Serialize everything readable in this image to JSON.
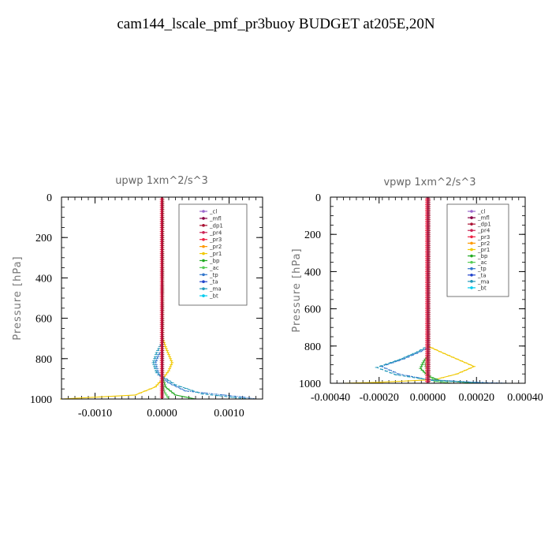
{
  "title": "cam144_lscale_pmf_pr3buoy  BUDGET at205E,20N",
  "chart_data": [
    {
      "type": "line",
      "title": "upwp   1xm^2/s^3",
      "ylabel": "Pressure [hPa]",
      "xlabel": "",
      "xlim": [
        -0.0015,
        0.0015
      ],
      "ylim": [
        1000,
        0
      ],
      "x_ticks": [
        "-0.0010",
        "0.0000",
        "0.0010"
      ],
      "x_tick_values": [
        -0.001,
        0,
        0.001
      ],
      "y_ticks": [
        "0",
        "200",
        "400",
        "600",
        "800",
        "1000"
      ],
      "y_tick_values": [
        0,
        200,
        400,
        600,
        800,
        1000
      ],
      "legend": [
        "_cl",
        "_mfl",
        "_dp1",
        "_pr4",
        "_pr3",
        "_pr2",
        "_pr1",
        "_bp",
        "_ac",
        "_tp",
        "_ta",
        "_ma",
        "_bt"
      ],
      "series": [
        {
          "name": "_pr1",
          "color": "#f0c800",
          "points": [
            [
              1e-05,
              0
            ],
            [
              1e-05,
              700
            ],
            [
              5e-05,
              740
            ],
            [
              0.0001,
              780
            ],
            [
              0.00015,
              820
            ],
            [
              0.0001,
              860
            ],
            [
              1e-05,
              900
            ],
            [
              -0.0001,
              940
            ],
            [
              -0.0004,
              980
            ],
            [
              -0.0015,
              1000
            ]
          ]
        },
        {
          "name": "_bp",
          "color": "#22aa22",
          "points": [
            [
              0,
              0
            ],
            [
              0,
              880
            ],
            [
              5e-05,
              940
            ],
            [
              0.0002,
              980
            ],
            [
              0.0005,
              1000
            ]
          ]
        },
        {
          "name": "_ac",
          "color": "#55cc55",
          "points": [
            [
              0,
              0
            ],
            [
              0,
              900
            ],
            [
              3e-05,
              960
            ],
            [
              0.0001,
              1000
            ]
          ]
        },
        {
          "name": "_tp",
          "color": "#3377cc",
          "points": [
            [
              0,
              0
            ],
            [
              0,
              760
            ],
            [
              -5e-05,
              780
            ],
            [
              -0.0001,
              820
            ],
            [
              -5e-05,
              880
            ],
            [
              0.0001,
              920
            ],
            [
              0.00035,
              960
            ],
            [
              0.0012,
              990
            ],
            [
              0.0014,
              1000
            ]
          ]
        },
        {
          "name": "_ma",
          "color": "#2299bb",
          "points": [
            [
              0,
              0
            ],
            [
              0,
              720
            ],
            [
              -8e-05,
              770
            ],
            [
              -0.00013,
              820
            ],
            [
              -8e-05,
              870
            ],
            [
              0.0002,
              930
            ],
            [
              0.0006,
              975
            ],
            [
              0.0013,
              1000
            ]
          ]
        },
        {
          "name": "_cl",
          "color": "#9966cc",
          "points": [
            [
              0,
              0
            ],
            [
              0,
              1000
            ]
          ]
        },
        {
          "name": "_mfl",
          "color": "#880044",
          "points": [
            [
              0,
              0
            ],
            [
              0,
              1000
            ]
          ]
        },
        {
          "name": "_pr3",
          "color": "#ee2244",
          "points": [
            [
              -1e-05,
              0
            ],
            [
              -1e-05,
              1000
            ]
          ]
        },
        {
          "name": "_dp1",
          "color": "#aa1133",
          "points": [
            [
              1e-05,
              0
            ],
            [
              1e-05,
              1000
            ]
          ]
        }
      ]
    },
    {
      "type": "line",
      "title": "vpwp   1xm^2/s^3",
      "ylabel": "Pressure [hPa]",
      "xlabel": "",
      "xlim": [
        -0.0004,
        0.0004
      ],
      "ylim": [
        1000,
        0
      ],
      "x_ticks": [
        "-0.00040",
        "-0.00020",
        "0.00000",
        "0.00020",
        "0.00040"
      ],
      "x_tick_values": [
        -0.0004,
        -0.0002,
        0,
        0.0002,
        0.0004
      ],
      "y_ticks": [
        "0",
        "200",
        "400",
        "600",
        "800",
        "1000"
      ],
      "y_tick_values": [
        0,
        200,
        400,
        600,
        800,
        1000
      ],
      "legend": [
        "_cl",
        "_mfl",
        "_dp1",
        "_pr4",
        "_pr3",
        "_pr2",
        "_pr1",
        "_bp",
        "_ac",
        "_tp",
        "_ta",
        "_ma",
        "_bt"
      ],
      "series": [
        {
          "name": "_pr1",
          "color": "#f0c800",
          "points": [
            [
              0,
              0
            ],
            [
              0,
              800
            ],
            [
              5e-05,
              830
            ],
            [
              0.00012,
              870
            ],
            [
              0.00019,
              910
            ],
            [
              0.00012,
              950
            ],
            [
              3e-05,
              980
            ],
            [
              -0.0002,
              995
            ],
            [
              -0.00035,
              1000
            ]
          ]
        },
        {
          "name": "_bp",
          "color": "#22aa22",
          "points": [
            [
              0,
              0
            ],
            [
              0,
              850
            ],
            [
              -2e-05,
              890
            ],
            [
              -3e-05,
              920
            ],
            [
              0,
              960
            ],
            [
              5e-05,
              985
            ],
            [
              0.0002,
              1000
            ]
          ]
        },
        {
          "name": "_ac",
          "color": "#55cc55",
          "points": [
            [
              0,
              0
            ],
            [
              0,
              860
            ],
            [
              -1e-05,
              900
            ],
            [
              0,
              950
            ],
            [
              3e-05,
              990
            ],
            [
              0.0001,
              1000
            ]
          ]
        },
        {
          "name": "_tp",
          "color": "#3377cc",
          "points": [
            [
              0,
              0
            ],
            [
              0,
              810
            ],
            [
              -3e-05,
              830
            ],
            [
              -0.0001,
              870
            ],
            [
              -0.00019,
              910
            ],
            [
              -0.00012,
              950
            ],
            [
              0,
              980
            ],
            [
              0.0002,
              995
            ],
            [
              0.00033,
              1000
            ]
          ]
        },
        {
          "name": "_ma",
          "color": "#2299bb",
          "points": [
            [
              0,
              0
            ],
            [
              0,
              800
            ],
            [
              -4e-05,
              830
            ],
            [
              -0.00011,
              870
            ],
            [
              -0.00021,
              915
            ],
            [
              -0.00013,
              955
            ],
            [
              2e-05,
              985
            ],
            [
              0.00025,
              1000
            ]
          ]
        },
        {
          "name": "_cl",
          "color": "#9966cc",
          "points": [
            [
              0,
              0
            ],
            [
              0,
              1000
            ]
          ]
        },
        {
          "name": "_mfl",
          "color": "#880044",
          "points": [
            [
              0,
              0
            ],
            [
              0,
              1000
            ]
          ]
        },
        {
          "name": "_pr3",
          "color": "#ee2244",
          "points": [
            [
              -5e-06,
              0
            ],
            [
              -5e-06,
              1000
            ]
          ]
        },
        {
          "name": "_dp1",
          "color": "#aa1133",
          "points": [
            [
              5e-06,
              0
            ],
            [
              5e-06,
              1000
            ]
          ]
        }
      ]
    }
  ],
  "legend_colors": [
    "#9966cc",
    "#880044",
    "#aa1133",
    "#cc2255",
    "#ee2244",
    "#ff9900",
    "#f0c800",
    "#22aa22",
    "#55cc55",
    "#3377cc",
    "#2244cc",
    "#2299bb",
    "#00ccee"
  ]
}
